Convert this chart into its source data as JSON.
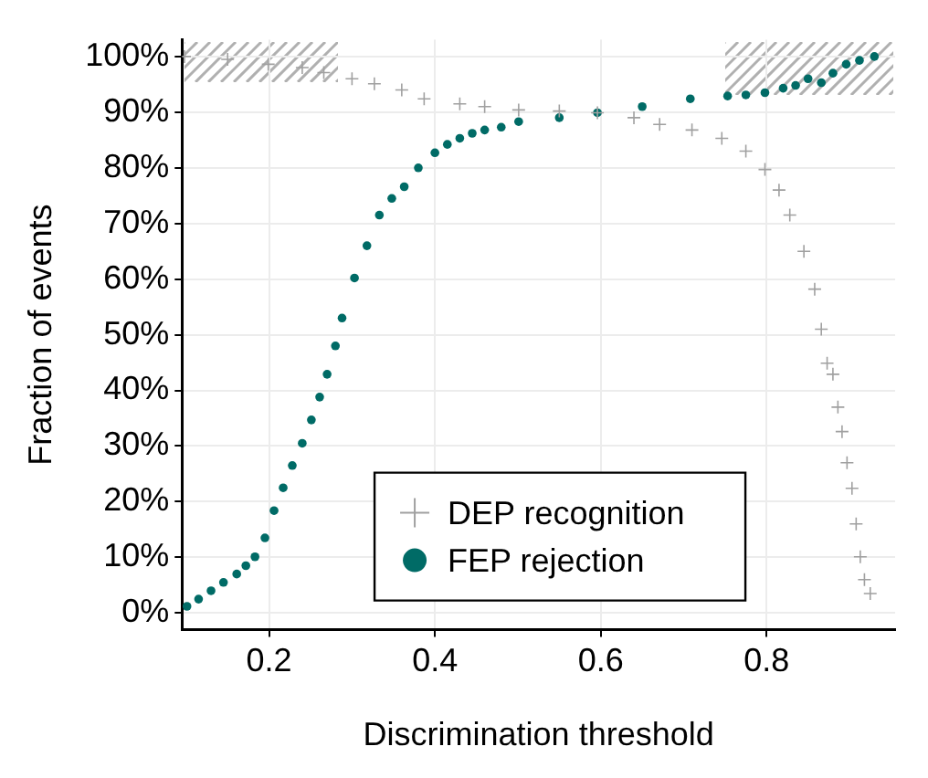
{
  "chart_data": {
    "type": "scatter",
    "xlabel": "Discrimination threshold",
    "ylabel": "Fraction of events",
    "xlim": [
      0.095,
      0.955
    ],
    "ylim": [
      -3,
      103
    ],
    "xticks": [
      0.2,
      0.4,
      0.6,
      0.8
    ],
    "yticks": [
      {
        "value": 0,
        "label": "0%"
      },
      {
        "value": 10,
        "label": "10%"
      },
      {
        "value": 20,
        "label": "20%"
      },
      {
        "value": 30,
        "label": "30%"
      },
      {
        "value": 40,
        "label": "40%"
      },
      {
        "value": 50,
        "label": "50%"
      },
      {
        "value": 60,
        "label": "60%"
      },
      {
        "value": 70,
        "label": "70%"
      },
      {
        "value": 80,
        "label": "80%"
      },
      {
        "value": 90,
        "label": "90%"
      },
      {
        "value": 100,
        "label": "100%"
      }
    ],
    "grid": true,
    "legend": "bottom",
    "series": [
      {
        "name": "DEP recognition",
        "color": "#a0a0a0",
        "marker": "cross",
        "x": [
          0.098,
          0.15,
          0.199,
          0.24,
          0.266,
          0.3,
          0.327,
          0.36,
          0.387,
          0.43,
          0.46,
          0.501,
          0.55,
          0.596,
          0.64,
          0.671,
          0.71,
          0.746,
          0.775,
          0.798,
          0.815,
          0.828,
          0.845,
          0.858,
          0.866,
          0.873,
          0.88,
          0.886,
          0.891,
          0.897,
          0.903,
          0.908,
          0.913,
          0.918,
          0.925
        ],
        "values": [
          100,
          99.5,
          98.6,
          98,
          97.1,
          96,
          95.1,
          94,
          92.4,
          91.5,
          91,
          90.4,
          90.2,
          89.9,
          89,
          87.8,
          86.8,
          85.3,
          83,
          79.7,
          76,
          71.5,
          65,
          58.2,
          51,
          44.9,
          42.9,
          37,
          32.6,
          27,
          22.4,
          16,
          10.1,
          6,
          3.5
        ]
      },
      {
        "name": "FEP rejection",
        "color": "#006b66",
        "marker": "circle",
        "x": [
          0.101,
          0.115,
          0.13,
          0.145,
          0.161,
          0.172,
          0.183,
          0.195,
          0.206,
          0.217,
          0.228,
          0.24,
          0.251,
          0.261,
          0.27,
          0.28,
          0.288,
          0.303,
          0.318,
          0.333,
          0.348,
          0.363,
          0.38,
          0.4,
          0.415,
          0.43,
          0.445,
          0.46,
          0.48,
          0.501,
          0.55,
          0.596,
          0.65,
          0.708,
          0.753,
          0.775,
          0.798,
          0.82,
          0.835,
          0.85,
          0.866,
          0.88,
          0.896,
          0.912,
          0.93
        ],
        "values": [
          1.2,
          2.5,
          4,
          5.5,
          7,
          8.5,
          10.1,
          13.5,
          18.4,
          22.5,
          26.5,
          30.5,
          34.7,
          38.8,
          42.9,
          48,
          53,
          60.2,
          66,
          71.5,
          74.5,
          76.6,
          80,
          82.7,
          84.2,
          85.3,
          86.2,
          86.8,
          87.3,
          88.3,
          89,
          89.9,
          91,
          92.4,
          92.9,
          93.1,
          93.5,
          94.3,
          94.8,
          96,
          95.3,
          97,
          98.6,
          99.3,
          100
        ]
      }
    ]
  }
}
